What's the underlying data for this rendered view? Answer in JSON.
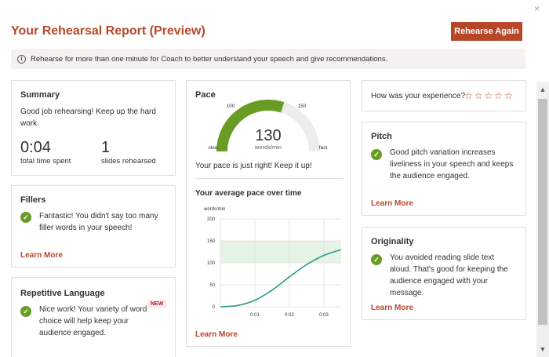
{
  "header": {
    "title": "Your Rehearsal Report (Preview)",
    "rehearse_again": "Rehearse Again",
    "close": "×"
  },
  "info": {
    "icon": "i",
    "text": "Rehearse for more than one minute for Coach to better understand your speech and give recommendations."
  },
  "summary": {
    "title": "Summary",
    "text": "Good job rehearsing! Keep up the hard work.",
    "time_value": "0:04",
    "time_label": "total time spent",
    "slides_value": "1",
    "slides_label": "slides rehearsed"
  },
  "fillers": {
    "title": "Fillers",
    "text": "Fantastic! You didn't say too many filler words in your speech!",
    "learn_more": "Learn More"
  },
  "repetitive": {
    "title": "Repetitive Language",
    "badge": "NEW",
    "text": "Nice work! Your variety of word choice will help keep your audience engaged."
  },
  "pace": {
    "title": "Pace",
    "value": "130",
    "unit": "words/min",
    "gauge_fraction": 0.6,
    "mark_100": "100",
    "mark_150": "150",
    "slow": "slow",
    "fast": "fast",
    "message": "Your pace is just right! Keep it up!",
    "chart_title": "Your average pace over time",
    "learn_more": "Learn More"
  },
  "experience": {
    "question": "How was your experience?",
    "stars": 5,
    "star_glyph": "☆"
  },
  "pitch": {
    "title": "Pitch",
    "text": "Good pitch variation increases liveliness in your speech and keeps the audience engaged.",
    "learn_more": "Learn More"
  },
  "originality": {
    "title": "Originality",
    "text": "You avoided reading slide text aloud. That's good for keeping the audience engaged with your message.",
    "learn_more": "Learn More"
  },
  "colors": {
    "accent": "#b7472a",
    "good": "#6a9c23",
    "gauge_track": "#ededed",
    "line": "#2f9a8c",
    "band": "#e5f4e5"
  },
  "chart_data": {
    "type": "line",
    "title": "Your average pace over time",
    "ylabel": "words/min",
    "xlabel": "",
    "y_ticks": [
      0,
      50,
      100,
      150,
      200
    ],
    "x_ticks": [
      "0:01",
      "0:02",
      "0:03"
    ],
    "xlim": [
      0,
      3.5
    ],
    "ylim": [
      0,
      200
    ],
    "target_band": [
      100,
      150
    ],
    "grid": true,
    "series": [
      {
        "x": [
          0,
          0.5,
          1.0,
          1.5,
          2.0,
          2.5,
          3.0,
          3.5
        ],
        "values": [
          0,
          3,
          15,
          38,
          68,
          96,
          117,
          130
        ]
      }
    ]
  }
}
